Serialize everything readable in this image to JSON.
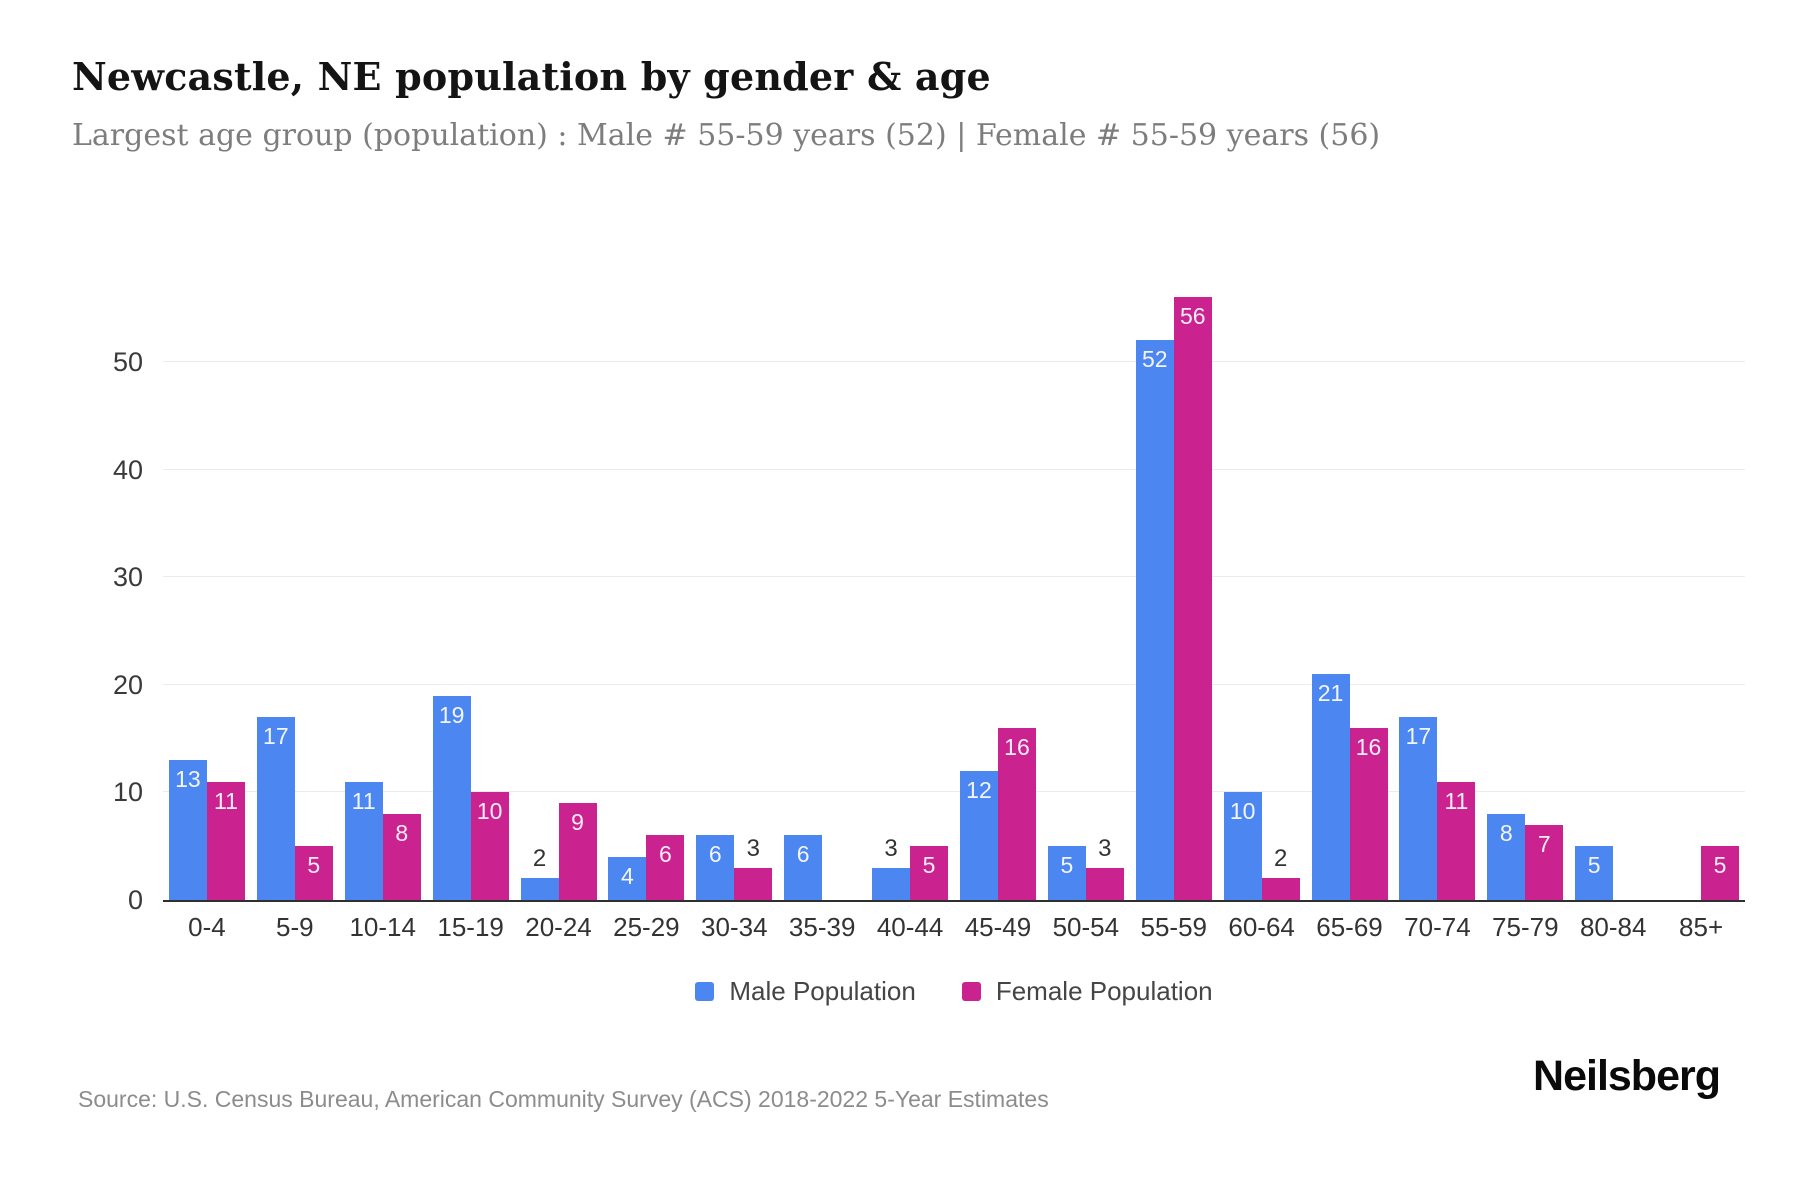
{
  "page": {
    "title": "Newcastle, NE population by gender & age",
    "subtitle": "Largest age group (population) : Male # 55-59 years (52) | Female # 55-59 years (56)",
    "source": "Source: U.S. Census Bureau, American Community Survey (ACS) 2018-2022 5-Year Estimates",
    "brand": "Neilsberg"
  },
  "chart_data": {
    "type": "bar",
    "title": "Newcastle, NE population by gender & age",
    "xlabel": "",
    "ylabel": "",
    "categories": [
      "0-4",
      "5-9",
      "10-14",
      "15-19",
      "20-24",
      "25-29",
      "30-34",
      "35-39",
      "40-44",
      "45-49",
      "50-54",
      "55-59",
      "60-64",
      "65-69",
      "70-74",
      "75-79",
      "80-84",
      "85+"
    ],
    "series": [
      {
        "name": "Male Population",
        "color": "#4c86f0",
        "values": [
          13,
          17,
          11,
          19,
          2,
          4,
          6,
          6,
          3,
          12,
          5,
          52,
          10,
          21,
          17,
          8,
          5,
          0
        ]
      },
      {
        "name": "Female Population",
        "color": "#ca2390",
        "values": [
          11,
          5,
          8,
          10,
          9,
          6,
          3,
          0,
          5,
          16,
          3,
          56,
          2,
          16,
          11,
          7,
          0,
          5
        ]
      }
    ],
    "ylim": [
      0,
      56
    ],
    "yticks": [
      0,
      10,
      20,
      30,
      40,
      50
    ],
    "grid": true,
    "legend_position": "bottom",
    "value_labels": "shown at top of each bar; values of 3 or less placed above bar in dark text; zero values have no bar and no label"
  }
}
